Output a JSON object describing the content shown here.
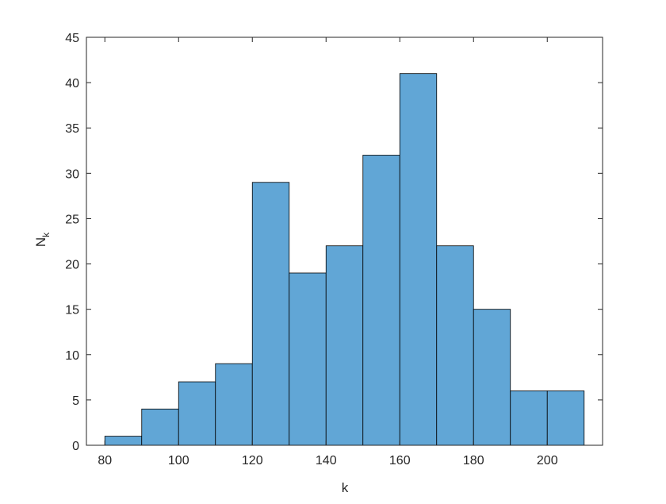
{
  "chart_data": {
    "type": "bar",
    "subtype": "histogram",
    "xlabel": "k",
    "ylabel": {
      "main": "N",
      "subscript": "k"
    },
    "bin_edges": [
      80,
      90,
      100,
      110,
      120,
      130,
      140,
      150,
      160,
      170,
      180,
      190,
      200,
      210
    ],
    "values": [
      1,
      4,
      7,
      9,
      29,
      19,
      22,
      32,
      41,
      22,
      15,
      6,
      6
    ],
    "xlim": [
      75,
      215
    ],
    "ylim": [
      0,
      45
    ],
    "xticks": [
      80,
      100,
      120,
      140,
      160,
      180,
      200
    ],
    "yticks": [
      0,
      5,
      10,
      15,
      20,
      25,
      30,
      35,
      40,
      45
    ],
    "bar_color": "#61a6d6",
    "edge_color": "#000000",
    "grid": false,
    "box": true
  }
}
